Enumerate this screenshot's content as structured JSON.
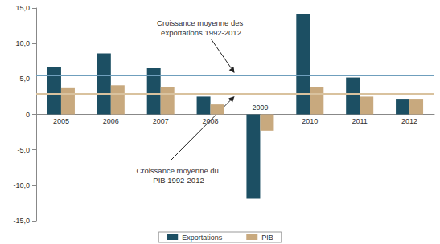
{
  "chart_data": {
    "type": "bar",
    "categories": [
      "2005",
      "2006",
      "2007",
      "2008",
      "2009",
      "2010",
      "2011",
      "2012"
    ],
    "series": [
      {
        "name": "Exportations",
        "color": "#1c4f63",
        "values": [
          6.7,
          8.6,
          6.5,
          2.5,
          -11.9,
          14.1,
          5.2,
          2.2
        ]
      },
      {
        "name": "PIB",
        "color": "#c8a97e",
        "values": [
          3.7,
          4.1,
          3.9,
          1.4,
          -2.3,
          3.8,
          2.5,
          2.2
        ]
      }
    ],
    "reference_lines": [
      {
        "label": "Croissance moyenne des exportations 1992-2012",
        "value": 5.5,
        "color": "#6f9fbd"
      },
      {
        "label": "Croissance moyenne du PIB 1992-2012",
        "value": 2.9,
        "color": "#d9c29e"
      }
    ],
    "ylim": [
      -15,
      15
    ],
    "yticks": [
      {
        "value": -15,
        "label": "-15,0"
      },
      {
        "value": -10,
        "label": "-10,0"
      },
      {
        "value": -5,
        "label": "-5,0"
      },
      0,
      {
        "value": 5,
        "label": "5,0"
      },
      {
        "value": 10,
        "label": "10,0"
      },
      {
        "value": 15,
        "label": "15,0"
      }
    ],
    "grid": false,
    "legend": "bottom"
  }
}
